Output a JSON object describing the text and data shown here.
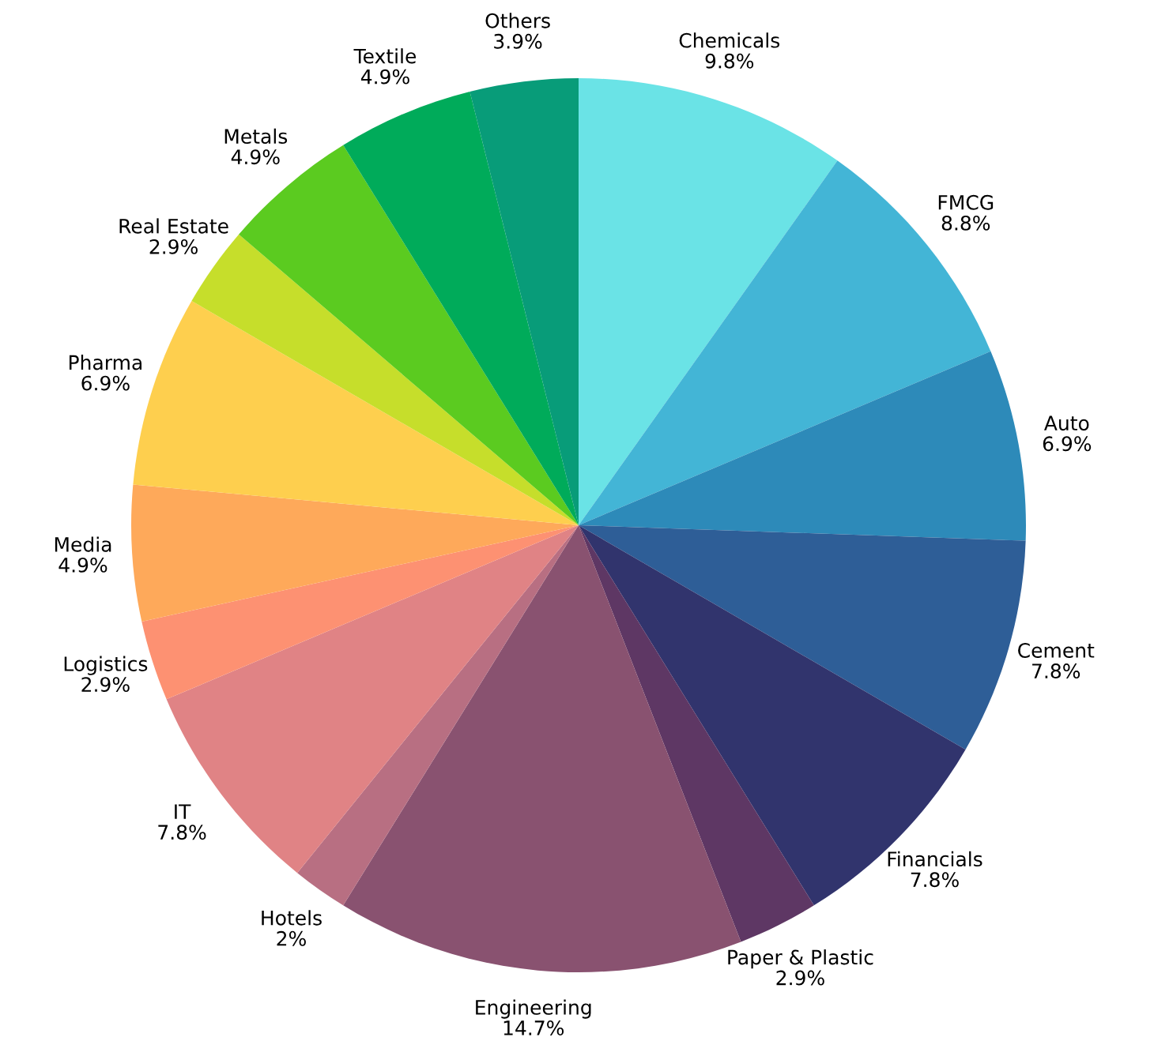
{
  "chart_data": {
    "type": "pie",
    "categories": [
      "Chemicals",
      "FMCG",
      "Auto",
      "Cement",
      "Financials",
      "Paper & Plastic",
      "Engineering",
      "Hotels",
      "IT",
      "Logistics",
      "Media",
      "Pharma",
      "Real Estate",
      "Metals",
      "Textile",
      "Others"
    ],
    "values": [
      9.8,
      8.8,
      6.9,
      7.8,
      7.8,
      2.9,
      14.7,
      2,
      7.8,
      2.9,
      4.9,
      6.9,
      2.9,
      4.9,
      4.9,
      3.9
    ],
    "value_labels": [
      "9.8%",
      "8.8%",
      "6.9%",
      "7.8%",
      "7.8%",
      "2.9%",
      "14.7%",
      "2%",
      "7.8%",
      "2.9%",
      "4.9%",
      "6.9%",
      "2.9%",
      "4.9%",
      "4.9%",
      "3.9%"
    ],
    "colors": [
      "#6ae3e6",
      "#43b5d6",
      "#2d8ab9",
      "#2e5e97",
      "#31346d",
      "#5e3764",
      "#895270",
      "#b86f82",
      "#e08385",
      "#fd9172",
      "#fea95a",
      "#fecf4e",
      "#c6de2b",
      "#5bcb20",
      "#00ab5a",
      "#089c79"
    ],
    "legend": false
  }
}
